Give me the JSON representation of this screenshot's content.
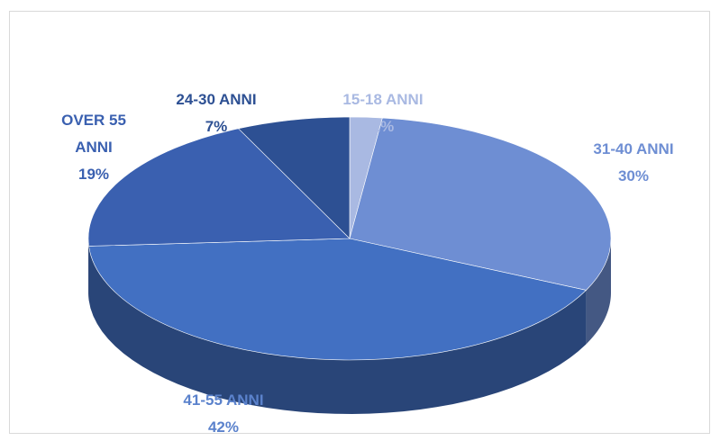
{
  "chart_data": {
    "type": "pie",
    "categories": [
      "15-18 ANNI",
      "31-40 ANNI",
      "41-55 ANNI",
      "OVER 55 ANNI",
      "24-30 ANNI"
    ],
    "values": [
      2,
      30,
      42,
      19,
      7
    ],
    "value_labels": [
      "2%",
      "30%",
      "42%",
      "19%",
      "7%"
    ],
    "colors": [
      "#a9b9e2",
      "#6e8ed3",
      "#4270c2",
      "#3a60b0",
      "#2d5093"
    ]
  }
}
